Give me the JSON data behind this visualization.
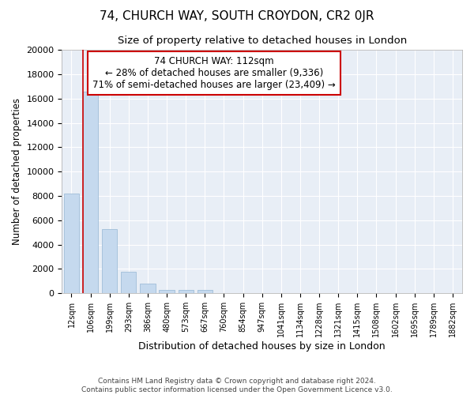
{
  "title": "74, CHURCH WAY, SOUTH CROYDON, CR2 0JR",
  "subtitle": "Size of property relative to detached houses in London",
  "xlabel": "Distribution of detached houses by size in London",
  "ylabel": "Number of detached properties",
  "bar_color": "#c5d9ee",
  "bar_edge_color": "#a0bdd8",
  "bg_color": "#e8eef6",
  "annotation_box_color": "#cc0000",
  "vline_color": "#cc0000",
  "categories": [
    "12sqm",
    "106sqm",
    "199sqm",
    "293sqm",
    "386sqm",
    "480sqm",
    "573sqm",
    "667sqm",
    "760sqm",
    "854sqm",
    "947sqm",
    "1041sqm",
    "1134sqm",
    "1228sqm",
    "1321sqm",
    "1415sqm",
    "1508sqm",
    "1602sqm",
    "1695sqm",
    "1789sqm",
    "1882sqm"
  ],
  "values": [
    8200,
    16600,
    5300,
    1800,
    800,
    300,
    300,
    300,
    0,
    0,
    0,
    0,
    0,
    0,
    0,
    0,
    0,
    0,
    0,
    0,
    0
  ],
  "vline_bar_index": 1,
  "annotation_text": "74 CHURCH WAY: 112sqm\n← 28% of detached houses are smaller (9,336)\n71% of semi-detached houses are larger (23,409) →",
  "ylim": [
    0,
    20000
  ],
  "yticks": [
    0,
    2000,
    4000,
    6000,
    8000,
    10000,
    12000,
    14000,
    16000,
    18000,
    20000
  ],
  "footer_line1": "Contains HM Land Registry data © Crown copyright and database right 2024.",
  "footer_line2": "Contains public sector information licensed under the Open Government Licence v3.0."
}
